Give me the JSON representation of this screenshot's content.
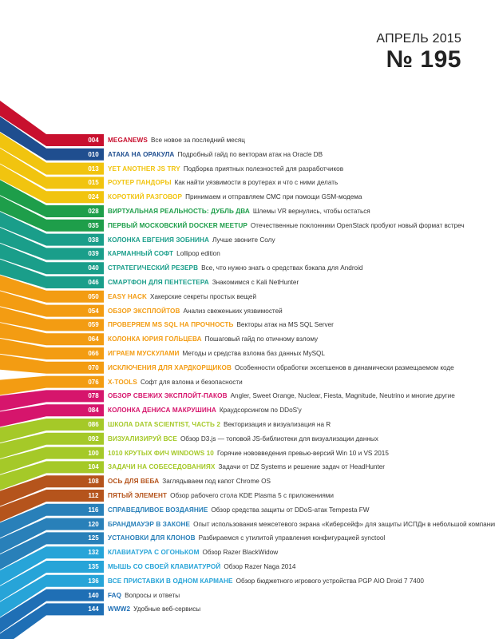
{
  "header": {
    "month": "АПРЕЛЬ 2015",
    "issue": "№ 195"
  },
  "items": [
    {
      "page": "004",
      "title": "MEGANEWS",
      "desc": "Все новое за последний месяц",
      "color": "#c8102e"
    },
    {
      "page": "010",
      "title": "АТАКА НА ОРАКУЛА",
      "desc": "Подробный гайд по векторам атак на Oracle DB",
      "color": "#1f4e8f"
    },
    {
      "page": "013",
      "title": "YET ANOTHER JS TRY",
      "desc": "Подборка приятных полезностей для разработчиков",
      "color": "#f1c40f"
    },
    {
      "page": "015",
      "title": "РОУТЕР ПАНДОРЫ",
      "desc": "Как найти уязвимости в роутерах и что с ними делать",
      "color": "#f1c40f"
    },
    {
      "page": "024",
      "title": "КОРОТКИЙ РАЗГОВОР",
      "desc": "Принимаем и отправляем СМС при помощи GSM-модема",
      "color": "#f1c40f"
    },
    {
      "page": "028",
      "title": "ВИРТУАЛЬНАЯ РЕАЛЬНОСТЬ: ДУБЛЬ ДВА",
      "desc": "Шлемы VR вернулись, чтобы остаться",
      "color": "#1e9e4a"
    },
    {
      "page": "035",
      "title": "ПЕРВЫЙ МОСКОВСКИЙ DOCKER MEETUP",
      "desc": "Отечественные поклонники OpenStack пробуют новый формат встреч",
      "color": "#1e9e4a"
    },
    {
      "page": "038",
      "title": "КОЛОНКА ЕВГЕНИЯ ЗОБНИНА",
      "desc": "Лучше звоните Солу",
      "color": "#1a9e8a"
    },
    {
      "page": "039",
      "title": "КАРМАННЫЙ СОФТ",
      "desc": "Lollipop edition",
      "color": "#1a9e8a"
    },
    {
      "page": "040",
      "title": "СТРАТЕГИЧЕСКИЙ РЕЗЕРВ",
      "desc": "Все, что нужно знать о средствах бэкапа для Android",
      "color": "#1a9e8a"
    },
    {
      "page": "046",
      "title": "СМАРТФОН ДЛЯ ПЕНТЕСТЕРА",
      "desc": "Знакомимся с Kali NetHunter",
      "color": "#1a9e8a"
    },
    {
      "page": "050",
      "title": "EASY HACK",
      "desc": "Хакерские секреты простых вещей",
      "color": "#f39c12"
    },
    {
      "page": "054",
      "title": "ОБЗОР ЭКСПЛОЙТОВ",
      "desc": "Анализ свеженьких уязвимостей",
      "color": "#f39c12"
    },
    {
      "page": "059",
      "title": "ПРОВЕРЯЕМ MS SQL НА ПРОЧНОСТЬ",
      "desc": "Векторы атак на MS SQL Server",
      "color": "#f39c12"
    },
    {
      "page": "064",
      "title": "КОЛОНКА ЮРИЯ ГОЛЬЦЕВА",
      "desc": "Пошаговый гайд по отичному взлому",
      "color": "#f39c12"
    },
    {
      "page": "066",
      "title": "ИГРАЕМ МУСКУЛАМИ",
      "desc": "Методы и средства взлома баз данных MySQL",
      "color": "#f39c12"
    },
    {
      "page": "070",
      "title": "ИСКЛЮЧЕНИЯ ДЛЯ ХАРДКОРЩИКОВ",
      "desc": "Особенности обработки эксепшенов в динамически размещаемом коде",
      "color": "#f39c12"
    },
    {
      "page": "076",
      "title": "X-TOOLS",
      "desc": "Софт для взлома и безопасности",
      "color": "#f39c12"
    },
    {
      "page": "078",
      "title": "ОБЗОР СВЕЖИХ ЭКСПЛОЙТ-ПАКОВ",
      "desc": "Angler, Sweet Orange, Nuclear, Fiesta, Magnitude, Neutrino и многие другие",
      "color": "#d6156c"
    },
    {
      "page": "084",
      "title": "КОЛОНКА ДЕНИСА МАКРУШИНА",
      "desc": "Краудсорсингом по DDoS'у",
      "color": "#d6156c"
    },
    {
      "page": "086",
      "title": "ШКОЛА DATA SCIENTIST, ЧАСТЬ 2",
      "desc": "Векторизация и визуализация на R",
      "color": "#a5c928"
    },
    {
      "page": "092",
      "title": "ВИЗУАЛИЗИРУЙ ВСЕ",
      "desc": "Обзор D3.js — топовой JS-библиотеки для визуализации данных",
      "color": "#a5c928"
    },
    {
      "page": "100",
      "title": "1010 КРУТЫХ ФИЧ WINDOWS 10",
      "desc": "Горячие нововведения превью-версий Win 10 и VS 2015",
      "color": "#a5c928"
    },
    {
      "page": "104",
      "title": "ЗАДАЧИ НА СОБЕСЕДОВАНИЯХ",
      "desc": "Задачи от DZ Systems и решение задач от HeadHunter",
      "color": "#a5c928"
    },
    {
      "page": "108",
      "title": "ОСЬ ДЛЯ ВЕБА",
      "desc": "Заглядываем под капот Chrome OS",
      "color": "#b5541c"
    },
    {
      "page": "112",
      "title": "ПЯТЫЙ ЭЛЕМЕНТ",
      "desc": "Обзор рабочего стола KDE Plasma 5 с приложениями",
      "color": "#b5541c"
    },
    {
      "page": "116",
      "title": "СПРАВЕДЛИВОЕ ВОЗДАЯНИЕ",
      "desc": "Обзор средства защиты от DDoS-атак Tempesta FW",
      "color": "#2980b9"
    },
    {
      "page": "120",
      "title": "БРАНДМАУЭР В ЗАКОНЕ",
      "desc": "Опыт использования межсетевого экрана «Киберсейф» для защиты ИСПДн в небольшой компании",
      "color": "#2980b9"
    },
    {
      "page": "125",
      "title": "УСТАНОВКИ ДЛЯ КЛОНОВ",
      "desc": "Разбираемся с утилитой управления конфигурацией synctool",
      "color": "#2980b9"
    },
    {
      "page": "132",
      "title": "КЛАВИАТУРА С ОГОНЬКОМ",
      "desc": "Обзор Razer BlackWidow",
      "color": "#27a4d8"
    },
    {
      "page": "135",
      "title": "МЫШЬ СО СВОЕЙ КЛАВИАТУРОЙ",
      "desc": "Обзор Razer Naga 2014",
      "color": "#27a4d8"
    },
    {
      "page": "136",
      "title": "ВСЕ ПРИСТАВКИ В ОДНОМ КАРМАНЕ",
      "desc": "Обзор бюджетного игрового устройства PGP AIO Droid 7 7400",
      "color": "#27a4d8"
    },
    {
      "page": "140",
      "title": "FAQ",
      "desc": "Вопросы и ответы",
      "color": "#1f6fb5"
    },
    {
      "page": "144",
      "title": "WWW2",
      "desc": "Удобные веб-сервисы",
      "color": "#1f6fb5"
    }
  ]
}
